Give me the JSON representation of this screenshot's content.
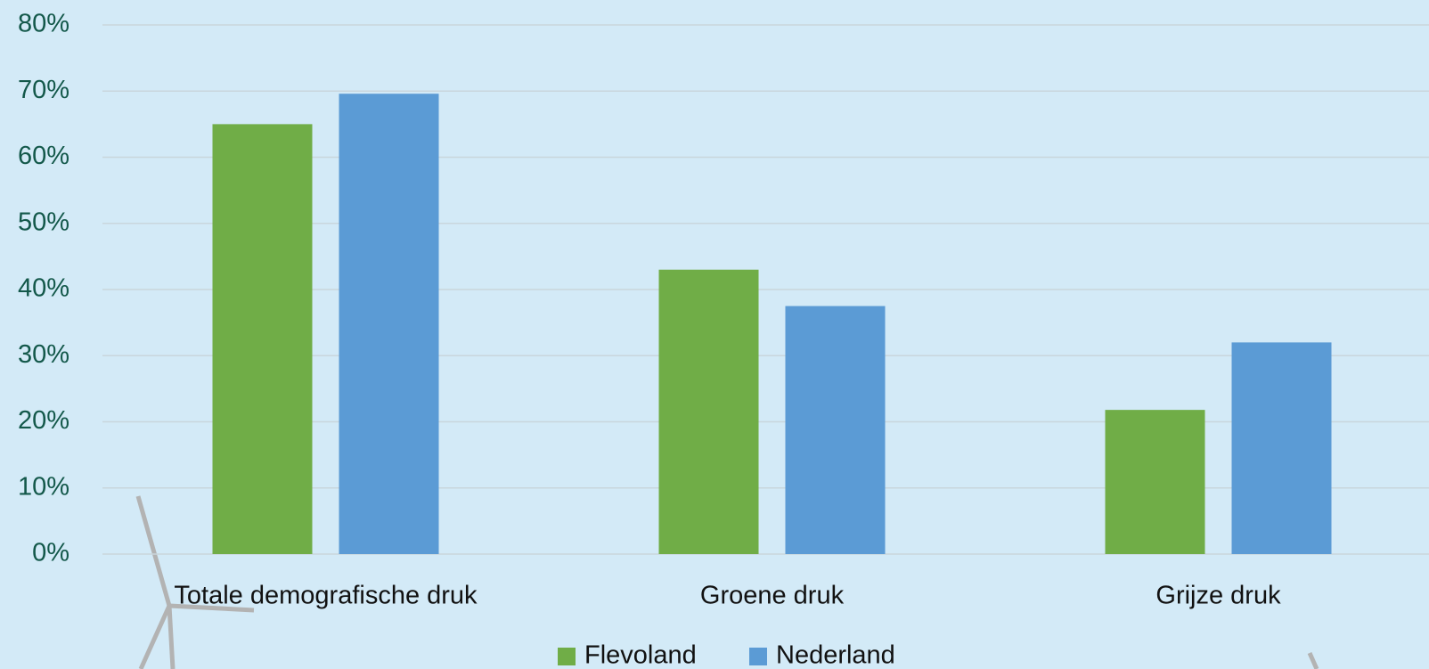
{
  "chart_data": {
    "type": "bar",
    "categories": [
      "Totale demografische druk",
      "Groene druk",
      "Grijze druk"
    ],
    "series": [
      {
        "name": "Flevoland",
        "color": "#70ad47",
        "values": [
          65.0,
          43.0,
          21.8
        ]
      },
      {
        "name": "Nederland",
        "color": "#5b9bd5",
        "values": [
          69.6,
          37.5,
          32.0
        ]
      }
    ],
    "ylim": [
      0,
      80
    ],
    "yticks": [
      {
        "value": 0,
        "label": "0%"
      },
      {
        "value": 10,
        "label": "10%"
      },
      {
        "value": 20,
        "label": "20%"
      },
      {
        "value": 30,
        "label": "30%"
      },
      {
        "value": 40,
        "label": "40%"
      },
      {
        "value": 50,
        "label": "50%"
      },
      {
        "value": 60,
        "label": "60%"
      },
      {
        "value": 70,
        "label": "70%"
      },
      {
        "value": 80,
        "label": "80%"
      }
    ],
    "grid": true,
    "legend": "bottom"
  }
}
